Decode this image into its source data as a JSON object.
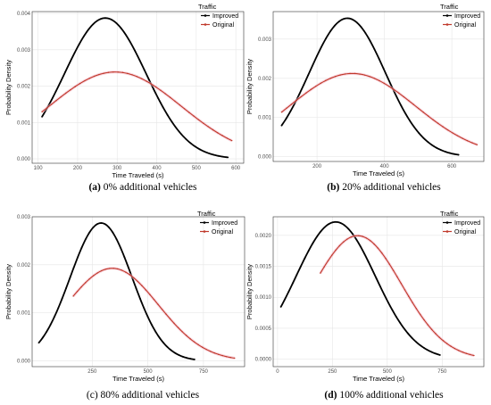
{
  "chart_data": [
    {
      "type": "line",
      "caption_tag": "(a)",
      "caption_text": " 0% additional vehicles",
      "xlabel": "Time Traveled (s)",
      "ylabel": "Probability Density",
      "xlim": [
        85,
        620
      ],
      "ylim": [
        -0.00012,
        0.00405
      ],
      "xticks": [
        "100",
        "200",
        "300",
        "400",
        "500",
        "600"
      ],
      "yticks": [
        "0.000",
        "0.001",
        "0.002",
        "0.003",
        "0.004"
      ],
      "grid": true,
      "legend_title": "Traffic",
      "legend_position": "top-right",
      "series": [
        {
          "name": "Improved",
          "color": "#000000",
          "mean": 270,
          "sd": 103,
          "x_range": [
            110,
            580
          ]
        },
        {
          "name": "Original",
          "color": "#c0392b",
          "mean": 295,
          "sd": 167,
          "x_range": [
            110,
            590
          ]
        }
      ]
    },
    {
      "type": "line",
      "caption_tag": "(b)",
      "caption_text": " 20% additional vehicles",
      "xlabel": "Time Traveled (s)",
      "ylabel": "Probability Density",
      "xlim": [
        70,
        695
      ],
      "ylim": [
        -0.00012,
        0.0037
      ],
      "xticks": [
        "200",
        "400",
        "600"
      ],
      "yticks": [
        "0.000",
        "0.001",
        "0.002",
        "0.003"
      ],
      "grid": true,
      "legend_title": "Traffic",
      "legend_position": "top-right",
      "series": [
        {
          "name": "Improved",
          "color": "#000000",
          "mean": 290,
          "sd": 113,
          "x_range": [
            95,
            620
          ]
        },
        {
          "name": "Original",
          "color": "#c0392b",
          "mean": 305,
          "sd": 188,
          "x_range": [
            95,
            675
          ]
        }
      ]
    },
    {
      "type": "line",
      "caption_tag": "",
      "caption_text": "(c) 80% additional vehicles",
      "xlabel": "Time Traveled (s)",
      "ylabel": "Probability Density",
      "xlim": [
        -20,
        935
      ],
      "ylim": [
        -0.00012,
        0.003
      ],
      "xticks": [
        "250",
        "500",
        "750"
      ],
      "yticks": [
        "0.000",
        "0.001",
        "0.002",
        "0.003"
      ],
      "grid": true,
      "legend_title": "Traffic",
      "legend_position": "top-right",
      "series": [
        {
          "name": "Improved",
          "color": "#000000",
          "mean": 290,
          "sd": 139,
          "x_range": [
            10,
            710
          ]
        },
        {
          "name": "Original",
          "color": "#c0392b",
          "mean": 340,
          "sd": 207,
          "x_range": [
            165,
            890
          ]
        }
      ]
    },
    {
      "type": "line",
      "caption_tag": "(d)",
      "caption_text": " 100% additional vehicles",
      "xlabel": "Time Traveled (s)",
      "ylabel": "Probability Density",
      "xlim": [
        -20,
        940
      ],
      "ylim": [
        -0.00012,
        0.0023
      ],
      "xticks": [
        "0",
        "250",
        "500",
        "750"
      ],
      "yticks": [
        "0.0000",
        "0.0005",
        "0.0010",
        "0.0015",
        "0.0020"
      ],
      "grid": true,
      "legend_title": "Traffic",
      "legend_position": "top-right",
      "series": [
        {
          "name": "Improved",
          "color": "#000000",
          "mean": 265,
          "sd": 180,
          "x_range": [
            15,
            740
          ]
        },
        {
          "name": "Original",
          "color": "#c0392b",
          "mean": 365,
          "sd": 200,
          "x_range": [
            195,
            895
          ]
        }
      ]
    }
  ]
}
